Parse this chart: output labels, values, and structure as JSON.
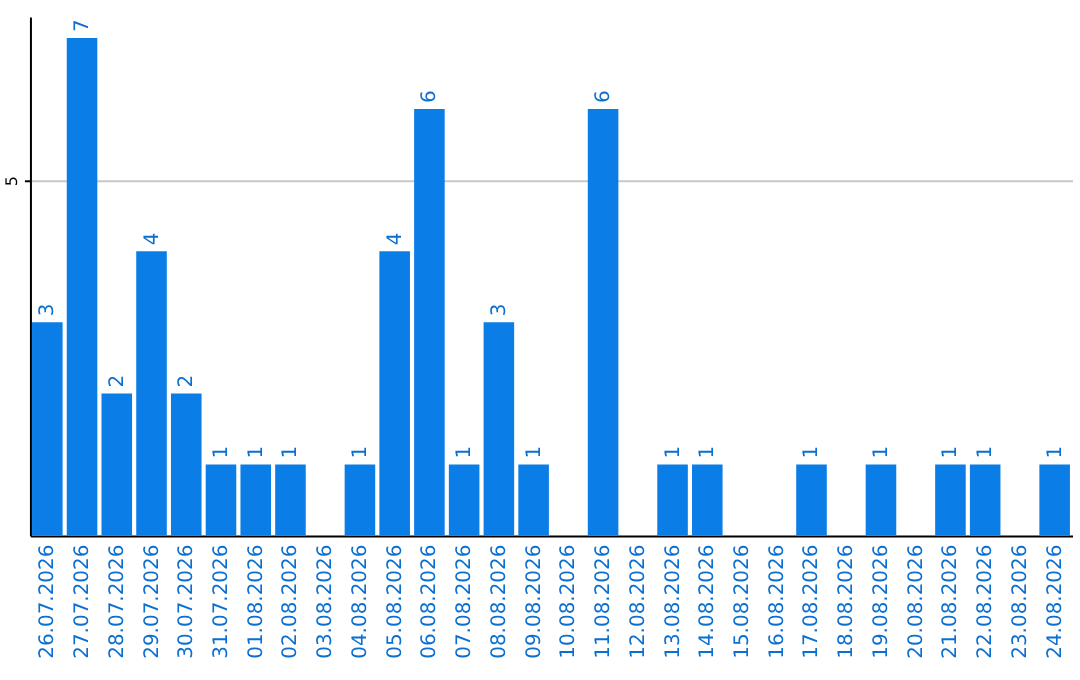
{
  "chart_data": {
    "type": "bar",
    "categories": [
      "26.07.2026",
      "27.07.2026",
      "28.07.2026",
      "29.07.2026",
      "30.07.2026",
      "31.07.2026",
      "01.08.2026",
      "02.08.2026",
      "03.08.2026",
      "04.08.2026",
      "05.08.2026",
      "06.08.2026",
      "07.08.2026",
      "08.08.2026",
      "09.08.2026",
      "10.08.2026",
      "11.08.2026",
      "12.08.2026",
      "13.08.2026",
      "14.08.2026",
      "15.08.2026",
      "16.08.2026",
      "17.08.2026",
      "18.08.2026",
      "19.08.2026",
      "20.08.2026",
      "21.08.2026",
      "22.08.2026",
      "23.08.2026",
      "24.08.2026"
    ],
    "values": [
      3,
      7,
      2,
      4,
      2,
      1,
      1,
      1,
      0,
      1,
      4,
      6,
      1,
      3,
      1,
      0,
      6,
      0,
      1,
      1,
      0,
      0,
      1,
      0,
      1,
      0,
      1,
      1,
      0,
      1
    ],
    "value_labels": [
      "3",
      "7",
      "2",
      "4",
      "2",
      "1",
      "1",
      "1",
      null,
      "1",
      "4",
      "6",
      "1",
      "3",
      "1",
      null,
      "6",
      null,
      "1",
      "1",
      null,
      null,
      "1",
      null,
      "1",
      null,
      "1",
      "1",
      null,
      "1"
    ],
    "color": "#0a7de6",
    "ylim": [
      0,
      7.3
    ],
    "yticks": [
      5
    ],
    "grid": "y"
  }
}
